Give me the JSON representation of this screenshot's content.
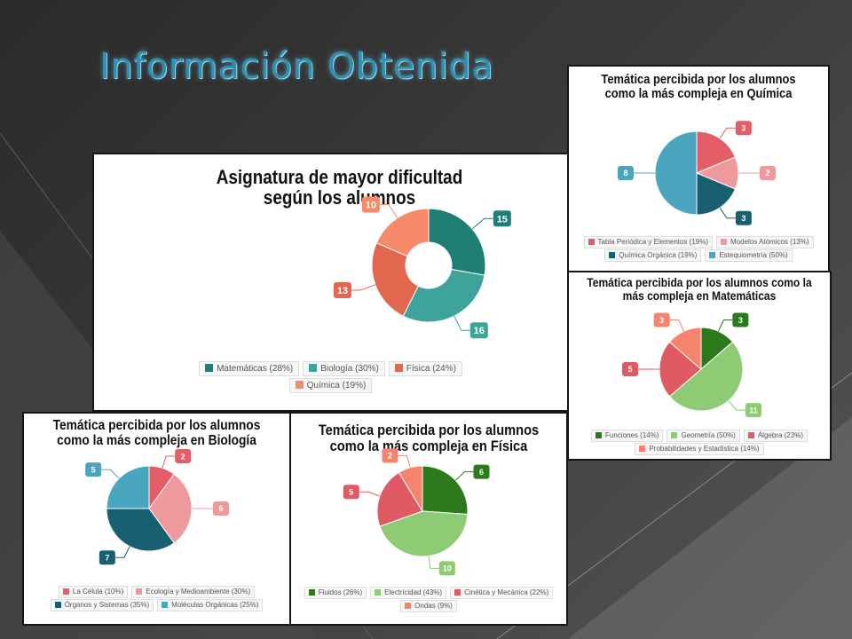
{
  "slide": {
    "title": "Información Obtenida"
  },
  "chart_data": [
    {
      "id": "asignatura",
      "type": "donut",
      "title": "Asignatura de mayor dificultad según los alumnos",
      "categories": [
        "Matemáticas",
        "Biología",
        "Física",
        "Química"
      ],
      "values": [
        15,
        16,
        13,
        10
      ],
      "legend": [
        "Matemáticas (28%)",
        "Biología (30%)",
        "Física (24%)",
        "Química (19%)"
      ],
      "colors": [
        "#1f7f74",
        "#3ea39a",
        "#e2674e",
        "#f68a6b"
      ]
    },
    {
      "id": "quimica",
      "type": "pie",
      "title": "Temática percibida por los alumnos como la más compleja en Química",
      "categories": [
        "Tabla Periódica y Elementos",
        "Modelos Atómicos",
        "Química Orgánica",
        "Estequiometría"
      ],
      "values": [
        3,
        2,
        3,
        8
      ],
      "legend": [
        "Tabla Periódica y Elementos (19%)",
        "Modelos Atómicos (13%)",
        "Química Orgánica (19%)",
        "Estequiometría (50%)"
      ],
      "colors": [
        "#e45d67",
        "#ee9a9c",
        "#195f72",
        "#4aa6bf"
      ]
    },
    {
      "id": "matematicas",
      "type": "pie",
      "title": "Temática percibida por los alumnos como la más compleja en Matemáticas",
      "categories": [
        "Funciones",
        "Geometría",
        "Álgebra",
        "Probabilidades y Estadística"
      ],
      "values": [
        3,
        11,
        5,
        3
      ],
      "legend": [
        "Funciones (14%)",
        "Geometría (50%)",
        "Álgebra (23%)",
        "Probabilidades y Estadística (14%)"
      ],
      "colors": [
        "#2c7a1c",
        "#8fca74",
        "#e05a64",
        "#f6836b"
      ]
    },
    {
      "id": "biologia",
      "type": "pie",
      "title": "Temática percibida por los alumnos como la más compleja en Biología",
      "categories": [
        "La Célula",
        "Ecología y Medioambiente",
        "Órganos y Sistemas",
        "Moléculas Orgánicas"
      ],
      "values": [
        2,
        6,
        7,
        5
      ],
      "legend": [
        "La Célula (10%)",
        "Ecología y Medioambiente (30%)",
        "Órganos y Sistemas (35%)",
        "Moléculas Orgánicas (25%)"
      ],
      "colors": [
        "#e45d67",
        "#ee9a9c",
        "#195f72",
        "#4aa6bf"
      ]
    },
    {
      "id": "fisica",
      "type": "pie",
      "title": "Temática percibida por los alumnos como la más compleja en Física",
      "categories": [
        "Fluidos",
        "Electricidad",
        "Cinética y Mecánica",
        "Ondas"
      ],
      "values": [
        6,
        10,
        5,
        2
      ],
      "legend": [
        "Fluidos (26%)",
        "Electricidad (43%)",
        "Cinética y Mecánica (22%)",
        "Ondas (9%)"
      ],
      "colors": [
        "#2c7a1c",
        "#8fca74",
        "#e05a64",
        "#f6836b"
      ]
    }
  ]
}
